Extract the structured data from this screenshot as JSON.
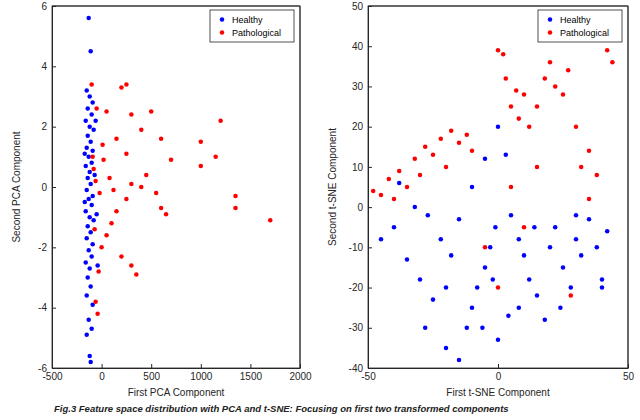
{
  "chart_data": [
    {
      "type": "scatter",
      "x_label": "First PCA Component",
      "y_label": "Second PCA Component",
      "xlim": [
        -500,
        2000
      ],
      "xticks": [
        -500,
        0,
        500,
        1000,
        1500,
        2000
      ],
      "ylim": [
        -6,
        6
      ],
      "yticks": [
        -6,
        -4,
        -2,
        0,
        2,
        4,
        6
      ],
      "grid": false,
      "legend": "northeast",
      "series": [
        {
          "name": "Healthy",
          "color": "#0000ff",
          "marker": "circle",
          "x": [
            -130,
            -110,
            -150,
            -120,
            -90,
            -140,
            -100,
            -160,
            -120,
            -80,
            -140,
            -110,
            -150,
            -90,
            -130,
            -100,
            -160,
            -120,
            -70,
            -140,
            -110,
            -150,
            -90,
            -130,
            -100,
            -160,
            -120,
            -80,
            -140,
            -110,
            -150,
            -90,
            -130,
            -100,
            -160,
            -120,
            -140,
            -110,
            -150,
            -90,
            -130,
            -100,
            -150,
            -120,
            -110,
            -40,
            -60,
            -50,
            -170,
            -170
          ],
          "values": [
            5.6,
            4.5,
            3.2,
            3.0,
            2.8,
            2.6,
            2.4,
            2.2,
            2.0,
            1.9,
            1.7,
            1.5,
            1.3,
            1.2,
            1.0,
            0.8,
            0.7,
            0.5,
            0.4,
            0.3,
            0.1,
            -0.1,
            -0.3,
            -0.4,
            -0.6,
            -0.8,
            -1.0,
            -1.1,
            -1.3,
            -1.5,
            -1.7,
            -1.9,
            -2.1,
            -2.3,
            -2.5,
            -2.7,
            -3.0,
            -3.3,
            -3.6,
            -3.9,
            -4.4,
            -4.7,
            -4.9,
            -5.6,
            -5.8,
            -2.6,
            2.2,
            -0.9,
            1.1,
            -0.5
          ]
        },
        {
          "name": "Pathological",
          "color": "#ff0000",
          "marker": "circle",
          "x": [
            -100,
            -50,
            50,
            150,
            200,
            250,
            300,
            400,
            500,
            600,
            700,
            1000,
            1200,
            1150,
            1000,
            1350,
            1350,
            1700,
            600,
            650,
            400,
            300,
            250,
            150,
            100,
            50,
            0,
            -30,
            200,
            300,
            350,
            -60,
            -40,
            -80,
            -60,
            -20,
            20,
            80,
            120,
            -90,
            -70,
            10,
            450,
            550,
            250
          ],
          "values": [
            3.4,
            2.6,
            2.5,
            1.6,
            3.3,
            3.4,
            2.4,
            1.9,
            2.5,
            1.6,
            0.9,
            1.5,
            2.2,
            1.0,
            0.7,
            -0.3,
            -0.7,
            -1.1,
            -0.7,
            -0.9,
            0.0,
            0.1,
            -0.4,
            -0.8,
            -1.2,
            -1.6,
            -2.0,
            -2.8,
            -2.3,
            -2.6,
            -2.9,
            -3.8,
            -4.2,
            0.6,
            0.2,
            -0.2,
            0.9,
            0.3,
            -0.1,
            1.0,
            -1.4,
            1.4,
            0.4,
            -0.2,
            1.1
          ]
        }
      ]
    },
    {
      "type": "scatter",
      "x_label": "First t-SNE Component",
      "y_label": "Second t-SNE Component",
      "xlim": [
        -50,
        50
      ],
      "xticks": [
        -50,
        0,
        50
      ],
      "ylim": [
        -40,
        50
      ],
      "yticks": [
        -40,
        -30,
        -20,
        -10,
        0,
        10,
        20,
        30,
        40,
        50
      ],
      "grid": false,
      "legend": "northeast",
      "series": [
        {
          "name": "Healthy",
          "color": "#0000ff",
          "marker": "circle",
          "x": [
            -45,
            -40,
            -35,
            -30,
            -25,
            -28,
            -20,
            -15,
            -12,
            -10,
            -8,
            -5,
            -3,
            -1,
            -18,
            -22,
            -15,
            -10,
            -5,
            0,
            3,
            5,
            8,
            10,
            12,
            15,
            18,
            20,
            22,
            25,
            28,
            30,
            32,
            35,
            38,
            40,
            42,
            -38,
            -32,
            -27,
            -20,
            -6,
            0,
            4,
            8,
            -2,
            14,
            24,
            30,
            40
          ],
          "values": [
            -8,
            -5,
            -13,
            -18,
            -23,
            -30,
            -35,
            -38,
            -30,
            -25,
            -20,
            -15,
            -10,
            -5,
            -12,
            -8,
            -3,
            5,
            12,
            20,
            13,
            -2,
            -8,
            -12,
            -18,
            -22,
            -28,
            -10,
            -5,
            -15,
            -20,
            -8,
            -12,
            -3,
            -10,
            -18,
            -6,
            6,
            0,
            -2,
            -20,
            -30,
            -33,
            -27,
            -25,
            -18,
            -5,
            -25,
            -2,
            -20
          ]
        },
        {
          "name": "Pathological",
          "color": "#ff0000",
          "marker": "circle",
          "x": [
            -48,
            -45,
            -42,
            -40,
            -38,
            -35,
            -32,
            -30,
            -28,
            -25,
            -22,
            -20,
            -18,
            -15,
            -12,
            -10,
            0,
            2,
            3,
            5,
            7,
            8,
            10,
            12,
            15,
            18,
            20,
            22,
            25,
            27,
            30,
            32,
            35,
            38,
            42,
            44,
            -5,
            0,
            10,
            28,
            35,
            5,
            15
          ],
          "values": [
            4,
            3,
            7,
            2,
            9,
            5,
            12,
            8,
            15,
            13,
            17,
            10,
            19,
            16,
            18,
            14,
            39,
            38,
            32,
            25,
            29,
            22,
            28,
            20,
            25,
            32,
            36,
            30,
            28,
            34,
            20,
            10,
            14,
            8,
            39,
            36,
            -10,
            -20,
            -5,
            -22,
            2,
            5,
            10
          ]
        }
      ]
    }
  ],
  "caption": "Fig.3 Feature space distribution with PCA and t-SNE: Focusing on first two transformed components"
}
